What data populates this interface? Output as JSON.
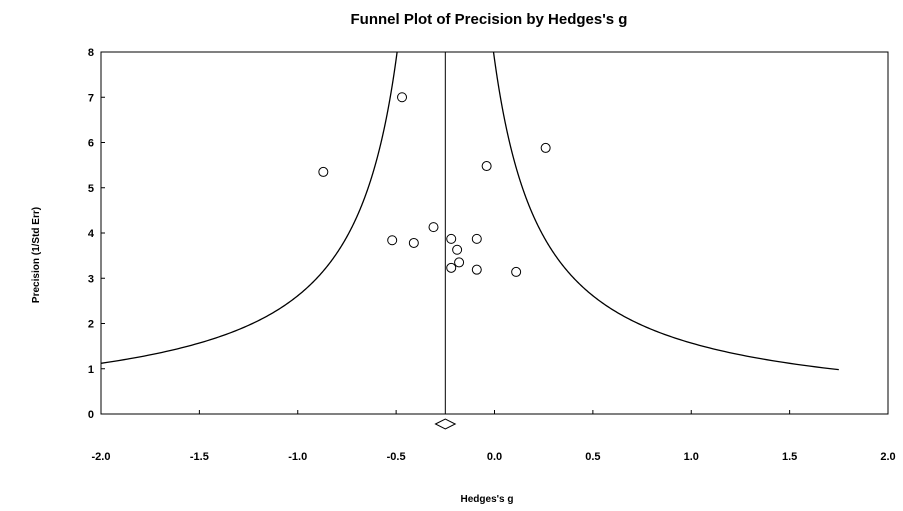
{
  "chart_data": {
    "type": "scatter",
    "title": "Funnel Plot of Precision by Hedges's g",
    "xlabel": "Hedges's g",
    "ylabel": "Precision (1/Std Err)",
    "xlim": [
      -2.0,
      2.0
    ],
    "ylim": [
      0,
      8
    ],
    "x_ticks": [
      "-2.0",
      "-1.5",
      "-1.0",
      "-0.5",
      "0.0",
      "0.5",
      "1.0",
      "1.5",
      "2.0"
    ],
    "y_ticks": [
      "0",
      "1",
      "2",
      "3",
      "4",
      "5",
      "6",
      "7",
      "8"
    ],
    "grid": false,
    "pooled_estimate": -0.25,
    "funnel_limits": "pooled estimate ± 1.96 / precision",
    "summary_diamond": {
      "center": -0.25,
      "lower": -0.3,
      "upper": -0.2
    },
    "points": [
      {
        "x": -0.47,
        "y": 7.0
      },
      {
        "x": -0.87,
        "y": 5.35
      },
      {
        "x": 0.26,
        "y": 5.88
      },
      {
        "x": -0.04,
        "y": 5.48
      },
      {
        "x": -0.31,
        "y": 4.13
      },
      {
        "x": -0.52,
        "y": 3.84
      },
      {
        "x": -0.41,
        "y": 3.78
      },
      {
        "x": -0.22,
        "y": 3.87
      },
      {
        "x": -0.09,
        "y": 3.87
      },
      {
        "x": -0.19,
        "y": 3.63
      },
      {
        "x": -0.18,
        "y": 3.35
      },
      {
        "x": -0.22,
        "y": 3.23
      },
      {
        "x": -0.09,
        "y": 3.19
      },
      {
        "x": 0.11,
        "y": 3.14
      }
    ]
  }
}
